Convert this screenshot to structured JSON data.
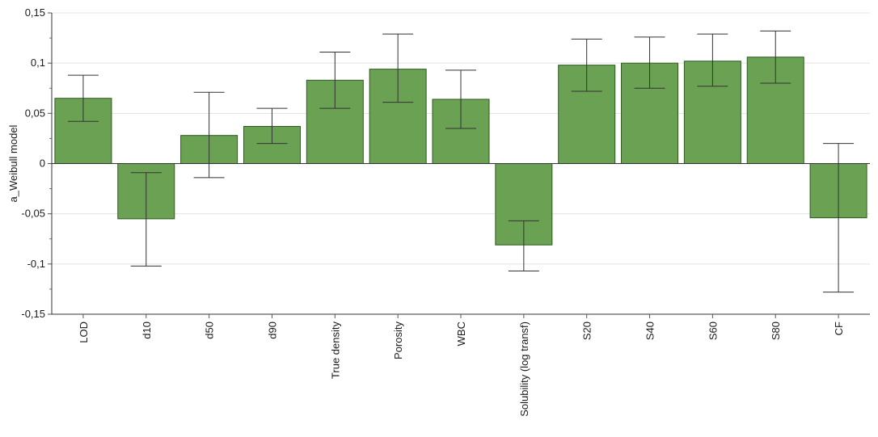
{
  "chart_data": {
    "type": "bar",
    "ylabel": "a_Weibull model",
    "xlabel": "",
    "ylim": [
      -0.15,
      0.15
    ],
    "yticks": [
      0.15,
      0.1,
      0.05,
      0,
      -0.05,
      -0.1,
      -0.15
    ],
    "ytick_labels": [
      "0,15",
      "0,1",
      "0,05",
      "0",
      "-0,05",
      "-0,1",
      "-0,15"
    ],
    "grid": true,
    "bar_color": "#6aa153",
    "bar_edge_color": "#2f5a1f",
    "categories": [
      "LOD",
      "d10",
      "d50",
      "d90",
      "True density",
      "Porosity",
      "WBC",
      "Solubility (log transf)",
      "S20",
      "S40",
      "S60",
      "S80",
      "CF"
    ],
    "values": [
      0.065,
      -0.055,
      0.028,
      0.037,
      0.083,
      0.094,
      0.064,
      -0.081,
      0.098,
      0.1,
      0.102,
      0.106,
      -0.054
    ],
    "error_low": [
      0.042,
      -0.102,
      -0.014,
      0.02,
      0.055,
      0.061,
      0.035,
      -0.107,
      0.072,
      0.075,
      0.077,
      0.08,
      -0.128
    ],
    "error_high": [
      0.088,
      -0.009,
      0.071,
      0.055,
      0.111,
      0.129,
      0.093,
      -0.057,
      0.124,
      0.126,
      0.129,
      0.132,
      0.02
    ]
  }
}
